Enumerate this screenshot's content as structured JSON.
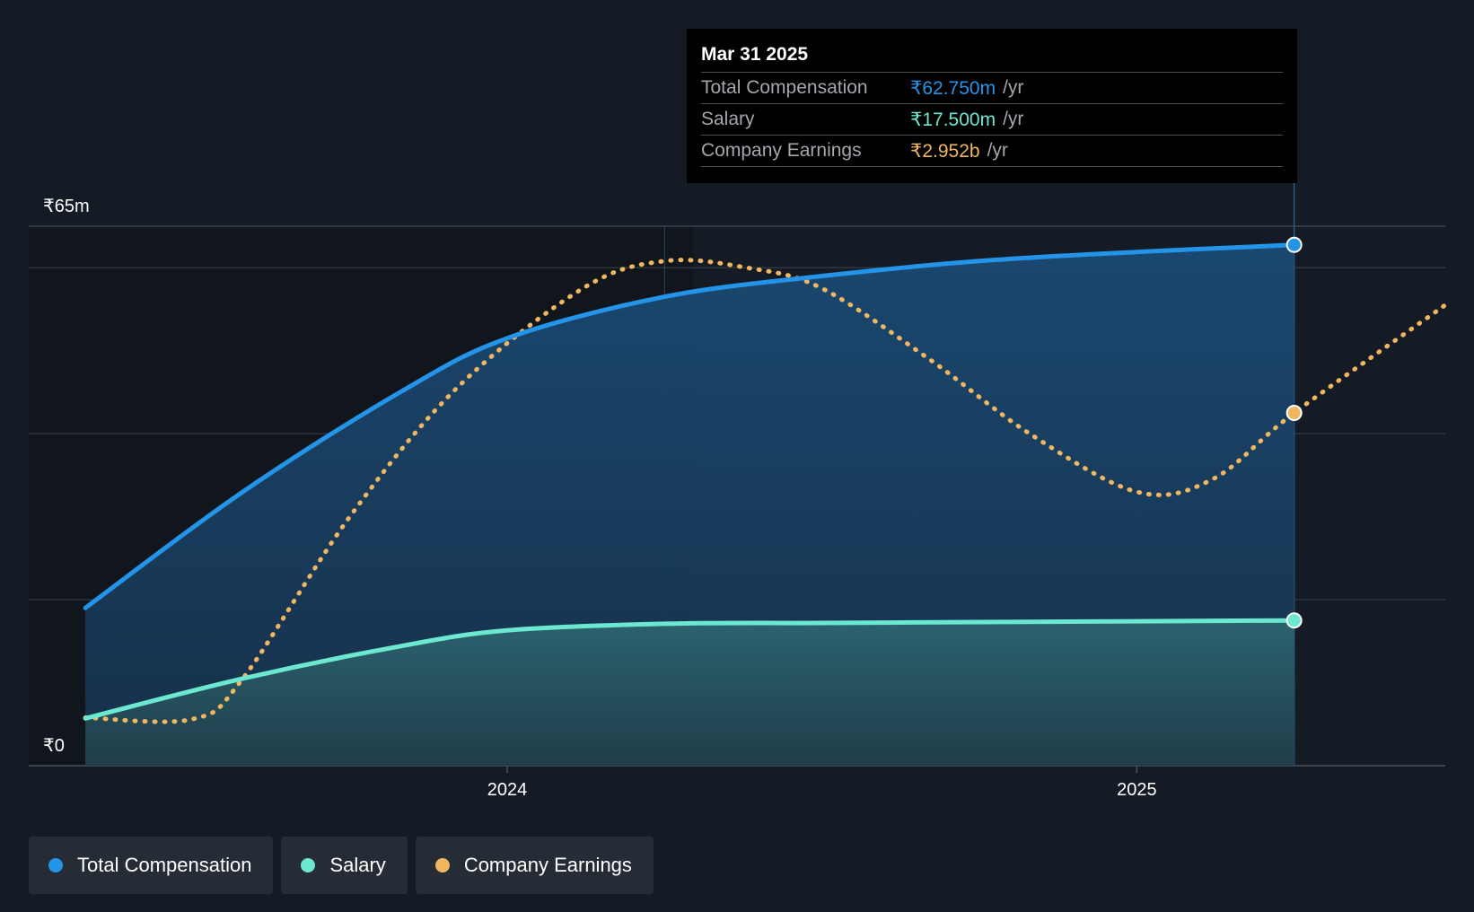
{
  "colors": {
    "background": "#151b24",
    "total_compensation": "#2394e8",
    "salary": "#6ce8d0",
    "company_earnings": "#f0b660",
    "gridline": "#2e3540"
  },
  "tooltip": {
    "date": "Mar 31 2025",
    "rows": [
      {
        "label": "Total Compensation",
        "value": "₹62.750m",
        "unit": "/yr"
      },
      {
        "label": "Salary",
        "value": "₹17.500m",
        "unit": "/yr"
      },
      {
        "label": "Company Earnings",
        "value": "₹2.952b",
        "unit": "/yr"
      }
    ]
  },
  "legend": [
    {
      "label": "Total Compensation",
      "color": "#2394e8"
    },
    {
      "label": "Salary",
      "color": "#6ce8d0"
    },
    {
      "label": "Company Earnings",
      "color": "#f0b660"
    }
  ],
  "chart_data": {
    "type": "line",
    "title": "",
    "xlabel": "",
    "ylabel": "",
    "y_axis_labels": [
      "₹65m",
      "₹0"
    ],
    "ylim": [
      0,
      65
    ],
    "xlim": [
      2023.24,
      2025.49
    ],
    "x_ticks": [
      {
        "label": "2024",
        "value": 2024.0
      },
      {
        "label": "2025",
        "value": 2025.0
      }
    ],
    "highlight_x": 2025.25,
    "series": [
      {
        "name": "Total Compensation",
        "unit": "₹m",
        "x": [
          2023.33,
          2023.58,
          2023.83,
          2024.0,
          2024.25,
          2024.5,
          2024.75,
          2025.0,
          2025.25
        ],
        "values": [
          19.0,
          33.0,
          45.0,
          51.5,
          56.5,
          59.0,
          60.8,
          61.9,
          62.75
        ]
      },
      {
        "name": "Salary",
        "unit": "₹m",
        "x": [
          2023.33,
          2023.58,
          2023.83,
          2024.0,
          2024.25,
          2024.5,
          2024.75,
          2025.0,
          2025.25
        ],
        "values": [
          5.7,
          10.5,
          14.4,
          16.3,
          17.1,
          17.2,
          17.3,
          17.4,
          17.5
        ]
      },
      {
        "name": "Company Earnings",
        "unit": "₹b (scaled to shared axis)",
        "x": [
          2023.33,
          2023.5,
          2023.58,
          2023.75,
          2023.92,
          2024.12,
          2024.25,
          2024.38,
          2024.5,
          2024.67,
          2024.83,
          2025.0,
          2025.12,
          2025.25,
          2025.49
        ],
        "values": [
          5.8,
          5.6,
          10.5,
          30.0,
          45.5,
          57.5,
          60.8,
          60.0,
          57.5,
          49.0,
          40.0,
          33.0,
          34.5,
          42.5,
          55.5
        ]
      }
    ]
  }
}
